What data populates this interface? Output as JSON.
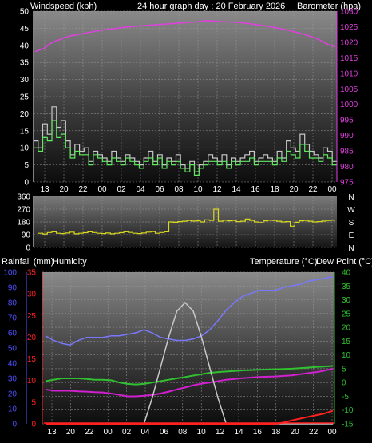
{
  "header": {
    "windspeed": "Windspeed (kph)",
    "title": "24 hour graph day : 20 February 2026",
    "barometer": "Barometer (hpa)"
  },
  "mid_header": {
    "rainfall": "Rainfall (mm)",
    "humidity": "Humidity",
    "temperature": "Temperature (°C)",
    "dewpoint": "Dew Point (°C)"
  },
  "compass": [
    "N",
    "W",
    "S",
    "E",
    "N"
  ],
  "colors": {
    "wind": "#c8c8c8",
    "gust_avg": "#60e860",
    "barometer": "#e040e0",
    "direction": "#d8d820",
    "humidity": "#7878ff",
    "rain": "#ff2020",
    "temperature": "#30c030",
    "dewpoint": "#d020d0",
    "solar": "#c8c8c8",
    "axis_left_blue": "#5050ff",
    "axis_red": "#ff2020",
    "axis_green": "#30c030"
  },
  "chart_data": [
    {
      "type": "line",
      "name": "wind-barometer",
      "x_ticks": [
        "13",
        "20",
        "22",
        "00",
        "02",
        "04",
        "06",
        "08",
        "10",
        "12",
        "14",
        "16",
        "18",
        "20",
        "22",
        "00"
      ],
      "y_left": {
        "label": "Windspeed (kph)",
        "range": [
          0,
          50
        ],
        "ticks": [
          0,
          5,
          10,
          15,
          20,
          25,
          30,
          35,
          40,
          45,
          50
        ]
      },
      "y_right": {
        "label": "Barometer (hpa)",
        "range": [
          975,
          1030
        ],
        "ticks": [
          975,
          980,
          985,
          990,
          995,
          1000,
          1005,
          1010,
          1015,
          1020,
          1025,
          1030
        ]
      },
      "series": [
        {
          "key": "windspeed",
          "y": "left",
          "values": [
            12,
            10,
            17,
            14,
            22,
            16,
            18,
            12,
            8,
            11,
            9,
            10,
            6,
            9,
            8,
            7,
            6,
            9,
            7,
            6,
            8,
            7,
            6,
            5,
            7,
            9,
            6,
            8,
            5,
            7,
            6,
            8,
            5,
            4,
            6,
            3,
            5,
            6,
            8,
            7,
            6,
            8,
            5,
            7,
            6,
            7,
            8,
            9,
            6,
            7,
            8,
            7,
            6,
            9,
            7,
            12,
            10,
            9,
            14,
            11,
            9,
            8,
            7,
            10,
            9,
            6
          ]
        },
        {
          "key": "gust_average",
          "y": "left",
          "values": [
            10,
            9,
            13,
            12,
            18,
            13,
            14,
            10,
            7,
            9,
            8,
            8,
            5,
            8,
            7,
            6,
            5,
            7,
            6,
            5,
            7,
            6,
            5,
            4,
            6,
            7,
            5,
            7,
            4,
            6,
            5,
            6,
            4,
            3,
            5,
            2,
            4,
            5,
            6,
            6,
            5,
            6,
            4,
            6,
            5,
            6,
            6,
            7,
            5,
            6,
            6,
            6,
            5,
            7,
            6,
            9,
            8,
            7,
            11,
            9,
            7,
            7,
            6,
            8,
            7,
            5
          ]
        },
        {
          "key": "barometer",
          "y": "right",
          "values": [
            1017,
            1018,
            1020,
            1021,
            1022,
            1022.5,
            1023,
            1023.5,
            1024,
            1024.3,
            1024.7,
            1025,
            1025.2,
            1025.4,
            1025.6,
            1025.8,
            1026,
            1026.2,
            1026.4,
            1026.6,
            1027,
            1026.8,
            1026.6,
            1026.5,
            1026.3,
            1026,
            1025.6,
            1025.2,
            1024.7,
            1024.2,
            1023.5,
            1022.8,
            1022,
            1021,
            1019.5,
            1018.5
          ]
        }
      ]
    },
    {
      "type": "line",
      "name": "wind-direction",
      "y_ticks": [
        0,
        90,
        180,
        270,
        360
      ],
      "series": [
        {
          "key": "direction",
          "values": [
            100,
            95,
            105,
            110,
            100,
            98,
            102,
            108,
            96,
            100,
            104,
            110,
            105,
            100,
            98,
            102,
            96,
            100,
            104,
            110,
            106,
            100,
            98,
            102,
            108,
            112,
            100,
            105,
            110,
            180,
            178,
            182,
            185,
            190,
            186,
            188,
            180,
            195,
            190,
            270,
            185,
            192,
            188,
            190,
            182,
            185,
            200,
            190,
            180,
            175,
            188,
            192,
            190,
            185,
            180,
            182,
            150,
            178,
            188,
            190,
            185,
            180,
            182,
            186,
            190,
            192
          ]
        }
      ]
    },
    {
      "type": "line",
      "name": "rain-humidity-temperature",
      "x_ticks": [
        "13",
        "20",
        "22",
        "00",
        "02",
        "04",
        "06",
        "08",
        "10",
        "12",
        "14",
        "16",
        "18",
        "20",
        "22",
        "00"
      ],
      "y_left_humidity": {
        "label": "Humidity",
        "range": [
          0,
          100
        ],
        "ticks": [
          0,
          10,
          20,
          30,
          40,
          50,
          60,
          70,
          80,
          90,
          100
        ]
      },
      "y_left_rain": {
        "label": "Rainfall (mm)",
        "range": [
          0,
          35
        ],
        "ticks": [
          0,
          5,
          10,
          15,
          20,
          25,
          30,
          35
        ]
      },
      "y_right": {
        "label": "Temperature (°C) Dew Point (°C)",
        "range": [
          -15,
          40
        ],
        "ticks": [
          -15,
          -10,
          -5,
          0,
          5,
          10,
          15,
          20,
          25,
          30,
          35,
          40
        ]
      },
      "series": [
        {
          "key": "humidity",
          "values": [
            58,
            55,
            53,
            52,
            55,
            57,
            57,
            57,
            58,
            58,
            59,
            60,
            62,
            60,
            57,
            56,
            55,
            55,
            56,
            58,
            62,
            68,
            75,
            80,
            84,
            86,
            88,
            88,
            88,
            90,
            91,
            92,
            94,
            95,
            96,
            97
          ]
        },
        {
          "key": "temperature",
          "values": [
            0.5,
            1,
            1.5,
            1.5,
            1.5,
            1.3,
            1,
            1,
            0.8,
            0,
            -0.5,
            -0.7,
            -0.5,
            0,
            0.5,
            1,
            1.5,
            2,
            2.5,
            3,
            3.5,
            3.8,
            4,
            4.2,
            4.4,
            4.5,
            4.6,
            4.7,
            4.8,
            4.9,
            5,
            5.2,
            5.4,
            5.6,
            5.8,
            6
          ]
        },
        {
          "key": "dewpoint",
          "values": [
            -2.5,
            -3,
            -3,
            -3,
            -3.2,
            -3.3,
            -3.5,
            -3.6,
            -4,
            -4.5,
            -5,
            -5,
            -4.8,
            -4.5,
            -4,
            -3.3,
            -2.5,
            -1.8,
            -1,
            -0.4,
            0,
            0.5,
            1,
            1.3,
            1.6,
            1.8,
            2,
            2.1,
            2.2,
            2.4,
            2.6,
            3,
            3.4,
            3.8,
            4.3,
            5
          ]
        },
        {
          "key": "solar",
          "values": [
            0,
            0,
            0,
            0,
            0,
            0,
            0,
            0,
            0,
            0,
            0,
            0,
            0,
            6,
            13,
            20,
            26,
            28,
            26,
            20,
            13,
            6,
            0,
            0,
            0,
            0,
            0,
            0,
            0,
            0,
            0,
            0,
            0,
            0,
            0,
            0
          ]
        },
        {
          "key": "rainfall",
          "values": [
            0,
            0,
            0,
            0,
            0,
            0,
            0,
            0,
            0,
            0,
            0,
            0,
            0,
            0,
            0,
            0,
            0,
            0,
            0,
            0,
            0,
            0,
            0,
            0,
            0,
            0,
            0,
            0,
            0,
            0.3,
            0.8,
            1.2,
            1.6,
            2,
            2.4,
            3
          ]
        }
      ]
    }
  ]
}
